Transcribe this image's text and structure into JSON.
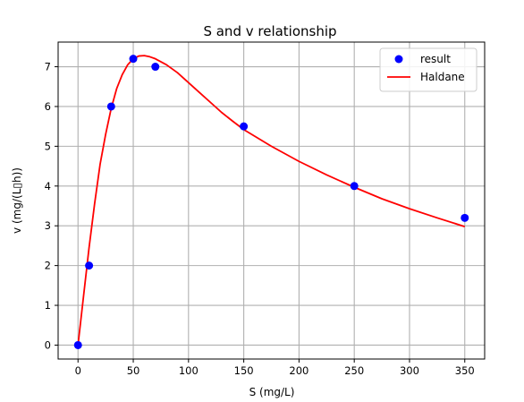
{
  "chart_data": {
    "type": "scatter",
    "title": "S and v relationship",
    "xlabel": "S (mg/L)",
    "ylabel": "v (mg/(L▯h))",
    "xlim": [
      -18,
      368
    ],
    "ylim": [
      -0.35,
      7.62
    ],
    "xticks": [
      0,
      50,
      100,
      150,
      200,
      250,
      300,
      350
    ],
    "yticks": [
      0,
      1,
      2,
      3,
      4,
      5,
      6,
      7
    ],
    "grid": true,
    "legend_position": "top-right",
    "colors": {
      "result": "#0000ff",
      "Haldane": "#ff0000"
    },
    "series": [
      {
        "name": "result",
        "kind": "scatter",
        "x": [
          0,
          10,
          30,
          50,
          70,
          150,
          250,
          350
        ],
        "y": [
          0,
          2,
          6,
          7.2,
          7,
          5.5,
          4,
          3.2
        ]
      },
      {
        "name": "Haldane",
        "kind": "line",
        "x": [
          0,
          5,
          10,
          15,
          20,
          25,
          30,
          35,
          40,
          45,
          50,
          55,
          60,
          65,
          70,
          80,
          90,
          100,
          110,
          120,
          130,
          140,
          150,
          175,
          200,
          225,
          250,
          275,
          300,
          325,
          350
        ],
        "y": [
          0,
          1.23,
          2.45,
          3.55,
          4.55,
          5.3,
          5.95,
          6.45,
          6.8,
          7.05,
          7.2,
          7.27,
          7.28,
          7.25,
          7.2,
          7.05,
          6.85,
          6.6,
          6.35,
          6.1,
          5.85,
          5.63,
          5.42,
          5.0,
          4.62,
          4.28,
          3.97,
          3.68,
          3.43,
          3.2,
          2.98
        ]
      }
    ]
  }
}
